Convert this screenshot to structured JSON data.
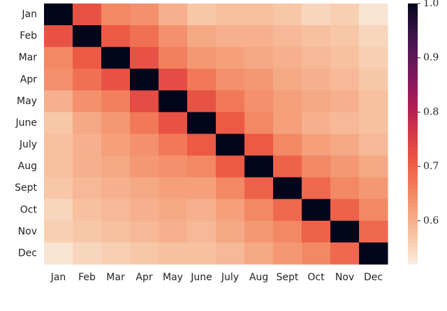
{
  "chart_data": {
    "type": "heatmap",
    "categories": [
      "Jan",
      "Feb",
      "Mar",
      "Apr",
      "May",
      "June",
      "July",
      "Aug",
      "Sept",
      "Oct",
      "Nov",
      "Dec"
    ],
    "values": [
      [
        1,
        0.72,
        0.65,
        0.64,
        0.6,
        0.57,
        0.58,
        0.58,
        0.57,
        0.55,
        0.56,
        0.53
      ],
      [
        0.72,
        1,
        0.71,
        0.68,
        0.64,
        0.61,
        0.6,
        0.6,
        0.59,
        0.58,
        0.57,
        0.55
      ],
      [
        0.65,
        0.71,
        1,
        0.72,
        0.66,
        0.63,
        0.62,
        0.61,
        0.6,
        0.59,
        0.58,
        0.56
      ],
      [
        0.64,
        0.68,
        0.72,
        1,
        0.73,
        0.67,
        0.64,
        0.63,
        0.61,
        0.6,
        0.59,
        0.57
      ],
      [
        0.6,
        0.64,
        0.66,
        0.73,
        1,
        0.72,
        0.67,
        0.64,
        0.62,
        0.61,
        0.6,
        0.58
      ],
      [
        0.57,
        0.61,
        0.63,
        0.67,
        0.72,
        1,
        0.71,
        0.65,
        0.62,
        0.6,
        0.59,
        0.58
      ],
      [
        0.58,
        0.6,
        0.62,
        0.64,
        0.67,
        0.71,
        1,
        0.71,
        0.65,
        0.62,
        0.61,
        0.59
      ],
      [
        0.58,
        0.6,
        0.61,
        0.63,
        0.64,
        0.65,
        0.71,
        1,
        0.7,
        0.65,
        0.63,
        0.61
      ],
      [
        0.57,
        0.59,
        0.6,
        0.61,
        0.62,
        0.62,
        0.65,
        0.7,
        1,
        0.69,
        0.65,
        0.63
      ],
      [
        0.55,
        0.58,
        0.59,
        0.6,
        0.61,
        0.6,
        0.62,
        0.65,
        0.69,
        1,
        0.7,
        0.65
      ],
      [
        0.56,
        0.57,
        0.58,
        0.59,
        0.6,
        0.59,
        0.61,
        0.63,
        0.65,
        0.7,
        1,
        0.69
      ],
      [
        0.53,
        0.55,
        0.56,
        0.57,
        0.58,
        0.58,
        0.59,
        0.61,
        0.63,
        0.65,
        0.69,
        1
      ]
    ],
    "colormap": "rocket_r",
    "colorbar_lim": [
      0.52,
      1.0
    ],
    "colorbar_ticks": [
      0.6,
      0.7,
      0.8,
      0.9,
      {
        "value": 1.0,
        "label": "1.0"
      }
    ]
  }
}
